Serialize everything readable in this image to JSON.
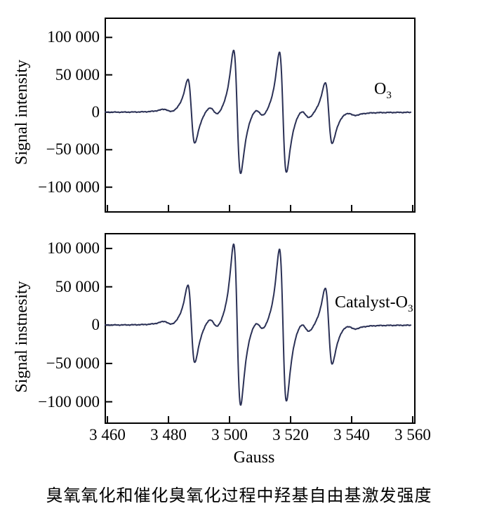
{
  "figure": {
    "background": "#ffffff",
    "line_color": "#2b3156",
    "axis_color": "#000000",
    "caption": "臭氧氧化和催化臭氧化过程中羟基自由基激发强度"
  },
  "x_axis": {
    "label": "Gauss",
    "ticks": [
      {
        "value": 3460,
        "label": "3 460"
      },
      {
        "value": 3480,
        "label": "3 480"
      },
      {
        "value": 3500,
        "label": "3 500"
      },
      {
        "value": 3520,
        "label": "3 520"
      },
      {
        "value": 3540,
        "label": "3 540"
      },
      {
        "value": 3560,
        "label": "3 560"
      }
    ]
  },
  "chart_data": [
    {
      "type": "line",
      "title": "EPR spectrum during ozonation",
      "annotation": {
        "main": "O",
        "sub": "3"
      },
      "ylabel": "Signal intensity",
      "xlabel": "Gauss",
      "xlim": [
        3459.3,
        3560.7
      ],
      "ylim": [
        -133100,
        125600
      ],
      "data_x_range": [
        3459.3,
        3559.5
      ],
      "y_ticks": [
        {
          "value": 100000,
          "label": "100 000"
        },
        {
          "value": 50000,
          "label": "50 000"
        },
        {
          "value": 0,
          "label": "0"
        },
        {
          "value": -50000,
          "label": "−50 000"
        },
        {
          "value": -100000,
          "label": "−100 000"
        }
      ],
      "epr_quartet": {
        "centers_gauss": [
          3487.5,
          3502.5,
          3517.5,
          3532.5
        ],
        "peak_amplitudes": [
          43000,
          83000,
          81000,
          41000
        ],
        "linewidth_gauss": 2.0
      },
      "satellite_lines": {
        "centers_gauss": [
          3479.8,
          3494.8,
          3509.8,
          3524.8,
          3539.8
        ],
        "peak_amplitudes": [
          2500,
          7000,
          7000,
          7000,
          2500
        ],
        "linewidth_gauss": 2.6
      },
      "noise_amplitude": 700
    },
    {
      "type": "line",
      "title": "EPR spectrum during catalytic ozonation",
      "annotation": {
        "main": "Catalyst-O",
        "sub": "3"
      },
      "ylabel": "Signal instnesity",
      "xlabel": "Gauss",
      "xlim": [
        3459.3,
        3560.7
      ],
      "ylim": [
        -127900,
        119300
      ],
      "data_x_range": [
        3459.3,
        3559.5
      ],
      "y_ticks": [
        {
          "value": 100000,
          "label": "100 000"
        },
        {
          "value": 50000,
          "label": "50 000"
        },
        {
          "value": 0,
          "label": "0"
        },
        {
          "value": -50000,
          "label": "−50 000"
        },
        {
          "value": -100000,
          "label": "−100 000"
        }
      ],
      "epr_quartet": {
        "centers_gauss": [
          3487.5,
          3502.5,
          3517.5,
          3532.5
        ],
        "peak_amplitudes": [
          51000,
          106000,
          100000,
          50000
        ],
        "linewidth_gauss": 2.0
      },
      "satellite_lines": {
        "centers_gauss": [
          3479.8,
          3494.8,
          3509.8,
          3524.8,
          3539.8
        ],
        "peak_amplitudes": [
          3000,
          8000,
          8000,
          8000,
          3000
        ],
        "linewidth_gauss": 2.6
      },
      "noise_amplitude": 700
    }
  ]
}
